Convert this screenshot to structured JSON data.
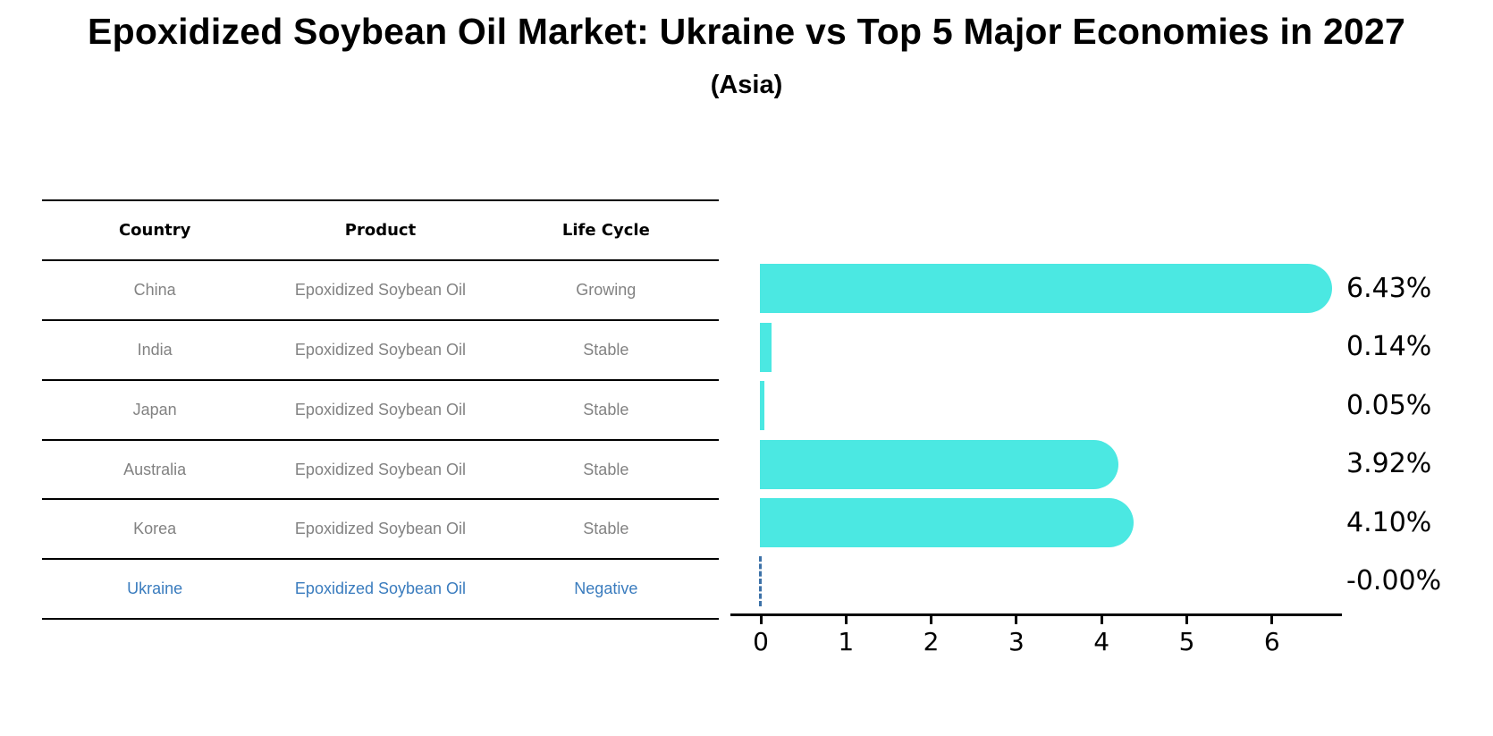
{
  "header": {
    "title": "Epoxidized Soybean Oil Market: Ukraine vs Top 5 Major Economies in 2027",
    "subtitle": "(Asia)"
  },
  "table": {
    "columns": [
      "Country",
      "Product",
      "Life Cycle"
    ],
    "rows": [
      {
        "country": "China",
        "product": "Epoxidized Soybean Oil",
        "life_cycle": "Growing",
        "highlight": false
      },
      {
        "country": "India",
        "product": "Epoxidized Soybean Oil",
        "life_cycle": "Stable",
        "highlight": false
      },
      {
        "country": "Japan",
        "product": "Epoxidized Soybean Oil",
        "life_cycle": "Stable",
        "highlight": false
      },
      {
        "country": "Australia",
        "product": "Epoxidized Soybean Oil",
        "life_cycle": "Stable",
        "highlight": false
      },
      {
        "country": "Korea",
        "product": "Epoxidized Soybean Oil",
        "life_cycle": "Stable",
        "highlight": false
      },
      {
        "country": "Ukraine",
        "product": "Epoxidized Soybean Oil",
        "life_cycle": "Negative",
        "highlight": true
      }
    ]
  },
  "chart_data": {
    "type": "bar",
    "orientation": "horizontal",
    "title": "Epoxidized Soybean Oil Market: Ukraine vs Top 5 Major Economies in 2027",
    "subtitle": "(Asia)",
    "categories": [
      "China",
      "India",
      "Japan",
      "Australia",
      "Korea",
      "Ukraine"
    ],
    "values": [
      6.43,
      0.14,
      0.05,
      3.92,
      4.1,
      -0.0
    ],
    "value_labels": [
      "6.43%",
      "0.14%",
      "0.05%",
      "3.92%",
      "4.10%",
      "-0.00%"
    ],
    "x_ticks": [
      0,
      1,
      2,
      3,
      4,
      5,
      6
    ],
    "xlim": [
      -0.35,
      6.82
    ],
    "xlabel": "",
    "ylabel": "",
    "grid": false,
    "legend": null,
    "bar_color": "#4BE8E2",
    "zero_line_color": "#3D72A8",
    "axis_color": "#000000",
    "highlight_text_color": "#3A7CBE",
    "row_text_color": "#828282"
  }
}
